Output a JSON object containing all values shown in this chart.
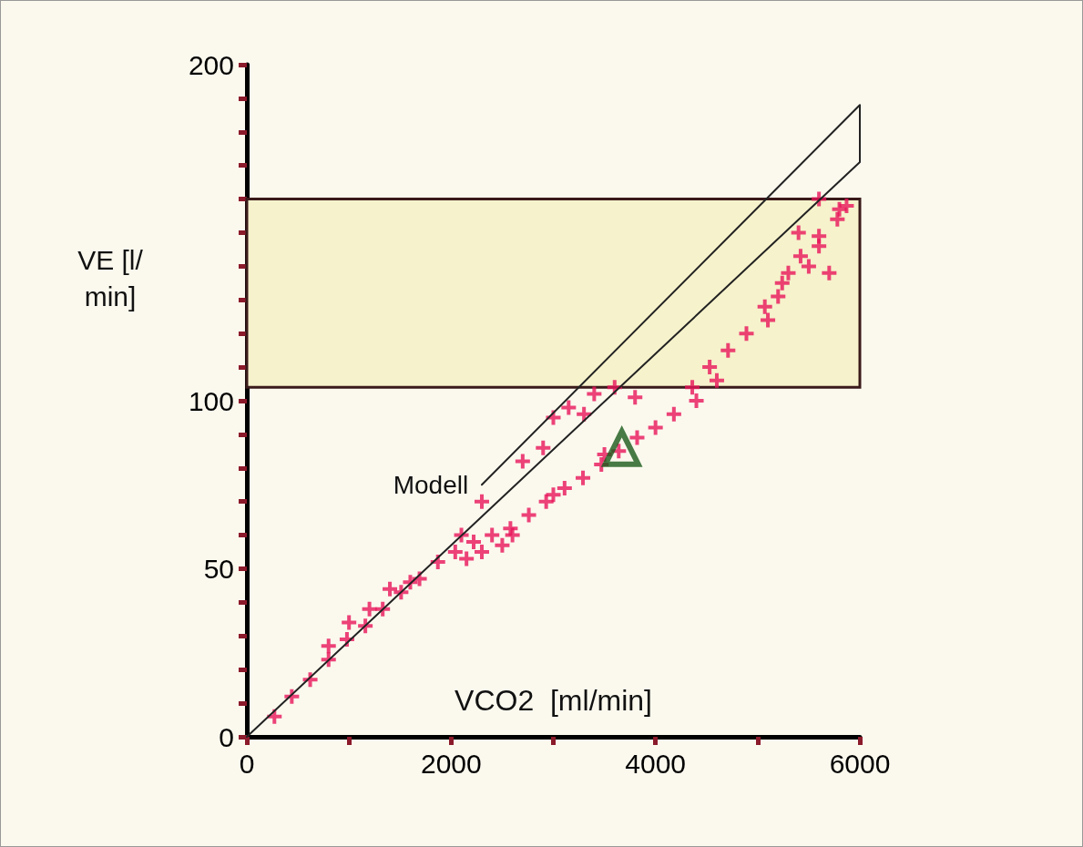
{
  "chart_data": {
    "type": "scatter",
    "xlabel": "VCO2  [ml/min]",
    "ylabel": "VE [l/min]",
    "xlim": [
      0,
      6000
    ],
    "ylim": [
      0,
      200
    ],
    "xticks": [
      0,
      {
        "value": 1000,
        "label": null
      },
      2000,
      {
        "value": 3000,
        "label": null
      },
      4000,
      {
        "value": 5000,
        "label": null
      },
      6000
    ],
    "yticks": [
      0,
      {
        "value": 10,
        "label": null
      },
      {
        "value": 20,
        "label": null
      },
      {
        "value": 30,
        "label": null
      },
      {
        "value": 40,
        "label": null
      },
      50,
      {
        "value": 60,
        "label": null
      },
      {
        "value": 70,
        "label": null
      },
      {
        "value": 80,
        "label": null
      },
      {
        "value": 90,
        "label": null
      },
      100,
      {
        "value": 110,
        "label": null
      },
      {
        "value": 120,
        "label": null
      },
      {
        "value": 130,
        "label": null
      },
      {
        "value": 140,
        "label": null
      },
      {
        "value": 150,
        "label": null
      },
      {
        "value": 160,
        "label": null
      },
      {
        "value": 170,
        "label": null
      },
      {
        "value": 180,
        "label": null
      },
      {
        "value": 190,
        "label": null
      },
      200
    ],
    "grid": false,
    "bands": [
      {
        "axis": "y",
        "from": 104,
        "to": 160,
        "color": "#f6f2cc"
      }
    ],
    "annotations": [
      "Modell"
    ],
    "series": [
      {
        "type": "line",
        "color": "#222222",
        "marker": "none",
        "line_style": "solid",
        "x": [
          2300,
          6000,
          6000,
          0
        ],
        "values": [
          75,
          188,
          171,
          0
        ]
      },
      {
        "color": "#e8145a",
        "marker": "cross",
        "x": [
          270,
          440,
          620,
          800,
          980,
          1160,
          1330,
          1510,
          1690,
          1870,
          2040,
          2220,
          2400,
          2580,
          2760,
          2930,
          3110,
          3290,
          3470,
          3640,
          3820,
          4000,
          4180,
          4360,
          4530,
          4710,
          4890,
          5070,
          5240,
          5420,
          5600,
          5780,
          5870,
          800,
          1000,
          1200,
          1400,
          1600,
          2100,
          2300,
          2500,
          2150,
          2600,
          3000,
          3500,
          4400,
          4600,
          5100,
          5200,
          5300,
          5500,
          5600,
          5700,
          5400,
          5600,
          5800,
          2300,
          2700,
          2900,
          3000,
          3150,
          3400,
          3600,
          3800,
          3300
        ],
        "values": [
          6,
          12,
          17,
          23,
          29,
          33,
          38,
          43,
          47,
          52,
          55,
          58,
          60,
          62,
          66,
          70,
          74,
          77,
          81,
          85,
          89,
          92,
          96,
          104,
          110,
          115,
          120,
          128,
          135,
          143,
          149,
          154,
          158,
          27,
          34,
          38,
          44,
          46,
          60,
          55,
          57,
          53,
          60,
          72,
          84,
          100,
          106,
          124,
          131,
          138,
          140,
          146,
          138,
          150,
          160,
          157,
          70,
          82,
          86,
          95,
          98,
          102,
          104,
          101,
          96
        ]
      },
      {
        "type": "scatter",
        "color": "#1a5a1a",
        "marker": "triangle",
        "x": [
          3670
        ],
        "values": [
          86
        ]
      }
    ]
  }
}
